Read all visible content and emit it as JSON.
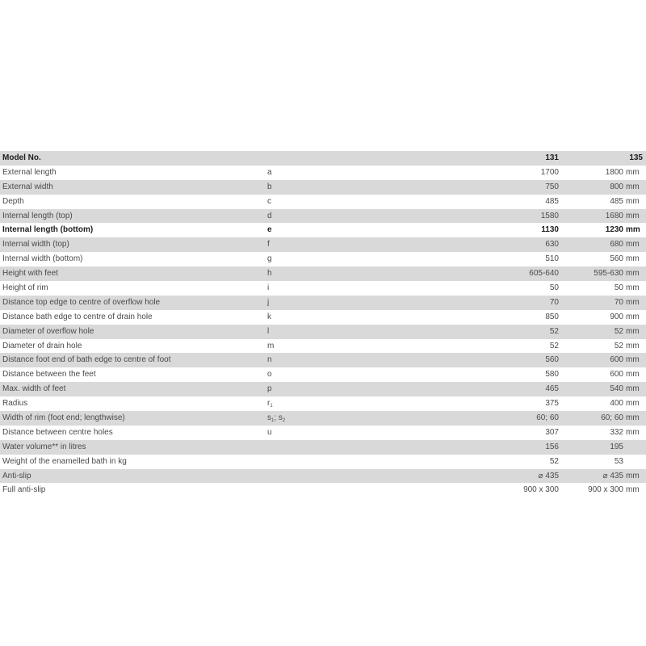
{
  "table": {
    "header": {
      "label": "Model No.",
      "model_1": "131",
      "model_2": "135"
    },
    "unit": "mm",
    "rows": [
      {
        "label": "External length",
        "symbol": [
          {
            "t": "a"
          }
        ],
        "v1": "1700",
        "v2": "1800",
        "u2": "mm"
      },
      {
        "label": "External width",
        "symbol": [
          {
            "t": "b"
          }
        ],
        "v1": "750",
        "v2": "800",
        "u2": "mm"
      },
      {
        "label": "Depth",
        "symbol": [
          {
            "t": "c"
          }
        ],
        "v1": "485",
        "v2": "485",
        "u2": "mm"
      },
      {
        "label": "Internal length (top)",
        "symbol": [
          {
            "t": "d"
          }
        ],
        "v1": "1580",
        "v2": "1680",
        "u2": "mm"
      },
      {
        "label": "Internal length (bottom)",
        "symbol": [
          {
            "t": "e"
          }
        ],
        "v1": "1130",
        "v2": "1230",
        "u2": "mm",
        "bold": true
      },
      {
        "label": "Internal width (top)",
        "symbol": [
          {
            "t": "f"
          }
        ],
        "v1": "630",
        "v2": "680",
        "u2": "mm"
      },
      {
        "label": "Internal width (bottom)",
        "symbol": [
          {
            "t": "g"
          }
        ],
        "v1": "510",
        "v2": "560",
        "u2": "mm"
      },
      {
        "label": "Height with feet",
        "symbol": [
          {
            "t": "h"
          }
        ],
        "v1": "605-640",
        "v2": "595-630",
        "u2": "mm"
      },
      {
        "label": "Height of rim",
        "symbol": [
          {
            "t": "i"
          }
        ],
        "v1": "50",
        "v2": "50",
        "u2": "mm"
      },
      {
        "label": "Distance top edge to centre of overflow hole",
        "symbol": [
          {
            "t": "j"
          }
        ],
        "v1": "70",
        "v2": "70",
        "u2": "mm"
      },
      {
        "label": "Distance bath edge to centre of drain hole",
        "symbol": [
          {
            "t": "k"
          }
        ],
        "v1": "850",
        "v2": "900",
        "u2": "mm"
      },
      {
        "label": "Diameter of overflow hole",
        "symbol": [
          {
            "t": "l"
          }
        ],
        "v1": "52",
        "v2": "52",
        "u2": "mm"
      },
      {
        "label": "Diameter of drain hole",
        "symbol": [
          {
            "t": "m"
          }
        ],
        "v1": "52",
        "v2": "52",
        "u2": "mm"
      },
      {
        "label": "Distance foot end of bath edge to centre of foot",
        "symbol": [
          {
            "t": "n"
          }
        ],
        "v1": "560",
        "v2": "600",
        "u2": "mm"
      },
      {
        "label": "Distance between the feet",
        "symbol": [
          {
            "t": "o"
          }
        ],
        "v1": "580",
        "v2": "600",
        "u2": "mm"
      },
      {
        "label": "Max. width of feet",
        "symbol": [
          {
            "t": "p"
          }
        ],
        "v1": "465",
        "v2": "540",
        "u2": "mm"
      },
      {
        "label": "Radius",
        "symbol": [
          {
            "t": "r",
            "sub": "1"
          }
        ],
        "v1": "375",
        "v2": "400",
        "u2": "mm"
      },
      {
        "label": "Width of rim (foot end; lengthwise)",
        "symbol": [
          {
            "t": "s",
            "sub": "1"
          },
          {
            "t": "; "
          },
          {
            "t": "s",
            "sub": "2"
          }
        ],
        "v1": "60; 60",
        "v2": "60; 60",
        "u2": "mm"
      },
      {
        "label": "Distance between centre holes",
        "symbol": [
          {
            "t": "u"
          }
        ],
        "v1": "307",
        "v2": "332",
        "u2": "mm"
      },
      {
        "label": "Water volume** in litres",
        "symbol": [],
        "v1": "156",
        "v2": "195",
        "u2": ""
      },
      {
        "label": "Weight of the enamelled bath in kg",
        "symbol": [],
        "v1": "52",
        "v2": "53",
        "u2": ""
      },
      {
        "label": "Anti-slip",
        "symbol": [],
        "v1": "⌀ 435",
        "v2": "⌀ 435",
        "u2": "mm"
      },
      {
        "label": "Full anti-slip",
        "symbol": [],
        "v1": "900 x 300",
        "v2": "900 x 300",
        "u2": "mm"
      }
    ]
  }
}
